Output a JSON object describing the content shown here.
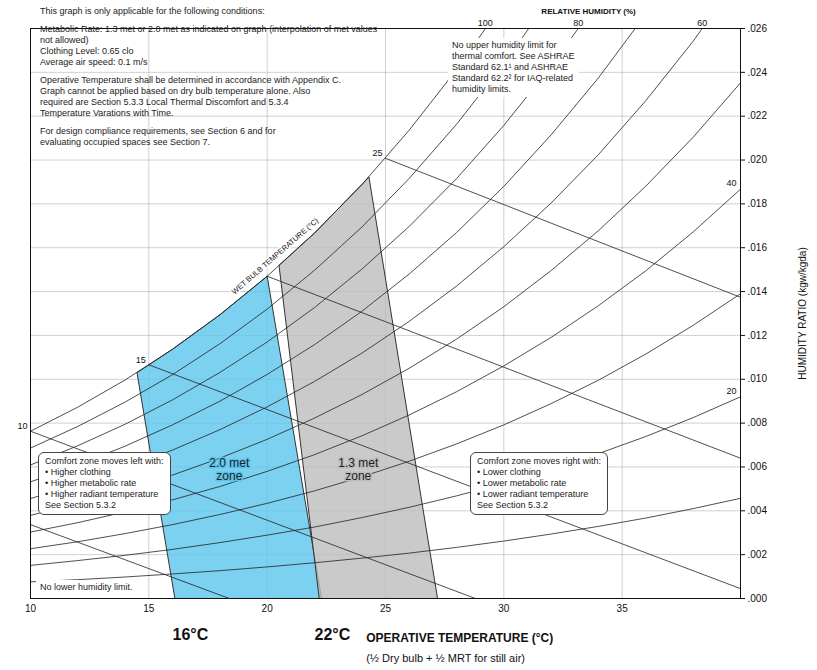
{
  "chart_data": {
    "type": "psychrometric",
    "xlabel": "OPERATIVE TEMPERATURE (°C)",
    "xlabel_note": "(½ Dry bulb + ½ MRT for still air)",
    "ylabel": "HUMIDITY RATIO (kgw/kgda)",
    "xlim": [
      10,
      40
    ],
    "xticks": [
      10,
      15,
      20,
      25,
      30,
      35
    ],
    "ylim": [
      0,
      0.026
    ],
    "yticks": [
      {
        "value": 0,
        "label": ".000"
      },
      {
        "value": 0.002,
        "label": ".002"
      },
      {
        "value": 0.004,
        "label": ".004"
      },
      {
        "value": 0.006,
        "label": ".006"
      },
      {
        "value": 0.008,
        "label": ".008"
      },
      {
        "value": 0.01,
        "label": ".010"
      },
      {
        "value": 0.012,
        "label": ".012"
      },
      {
        "value": 0.014,
        "label": ".014"
      },
      {
        "value": 0.016,
        "label": ".016"
      },
      {
        "value": 0.018,
        "label": ".018"
      },
      {
        "value": 0.02,
        "label": ".020"
      },
      {
        "value": 0.022,
        "label": ".022"
      },
      {
        "value": 0.024,
        "label": ".024"
      },
      {
        "value": 0.026,
        "label": ".026"
      }
    ],
    "grid": true,
    "relative_humidity": {
      "label": "RELATIVE HUMIDITY (%)",
      "curves": [
        {
          "label": 100,
          "x": [
            10,
            12,
            14,
            16,
            18,
            20,
            22,
            24,
            26,
            28,
            29.22
          ],
          "y": [
            0.00763,
            0.00873,
            0.00997,
            0.01137,
            0.01294,
            0.0147,
            0.01667,
            0.01888,
            0.02136,
            0.02412,
            0.026
          ]
        },
        {
          "x": [
            10,
            12,
            14,
            16,
            18,
            20,
            22,
            24,
            26,
            28,
            30,
            31.05
          ],
          "y": [
            0.00686,
            0.00785,
            0.00896,
            0.01021,
            0.01162,
            0.0132,
            0.01497,
            0.01694,
            0.01916,
            0.02163,
            0.02438,
            0.026
          ]
        },
        {
          "label": 80,
          "x": [
            10,
            12,
            14,
            16,
            18,
            20,
            22,
            24,
            26,
            28,
            30,
            32,
            33.14
          ],
          "y": [
            0.00609,
            0.00697,
            0.00795,
            0.00906,
            0.01031,
            0.0117,
            0.01327,
            0.01502,
            0.01697,
            0.01915,
            0.02158,
            0.02428,
            0.026
          ]
        },
        {
          "x": [
            10,
            12,
            14,
            16,
            18,
            20,
            22,
            24,
            26,
            28,
            30,
            32,
            34,
            35.55
          ],
          "y": [
            0.00532,
            0.00609,
            0.00695,
            0.00792,
            0.009,
            0.01022,
            0.01158,
            0.0131,
            0.0148,
            0.01669,
            0.0188,
            0.02115,
            0.02375,
            0.026
          ]
        },
        {
          "label": 60,
          "x": [
            10,
            12,
            14,
            16,
            18,
            20,
            22,
            24,
            26,
            28,
            30,
            32,
            34,
            36,
            38,
            38.38
          ],
          "y": [
            0.00456,
            0.00521,
            0.00595,
            0.00677,
            0.0077,
            0.00874,
            0.0099,
            0.01119,
            0.01264,
            0.01425,
            0.01605,
            0.01804,
            0.02025,
            0.02271,
            0.02542,
            0.026
          ]
        },
        {
          "x": [
            10,
            12,
            14,
            16,
            18,
            20,
            22,
            24,
            26,
            28,
            30,
            32,
            34,
            36,
            38,
            40
          ],
          "y": [
            0.00379,
            0.00434,
            0.00495,
            0.00563,
            0.0064,
            0.00726,
            0.00823,
            0.0093,
            0.0105,
            0.01183,
            0.01331,
            0.01496,
            0.01678,
            0.01881,
            0.02104,
            0.02352
          ]
        },
        {
          "label": 40,
          "x": [
            10,
            12,
            14,
            16,
            18,
            20,
            22,
            24,
            26,
            28,
            30,
            32,
            34,
            36,
            38,
            40
          ],
          "y": [
            0.00303,
            0.00346,
            0.00395,
            0.0045,
            0.00511,
            0.0058,
            0.00656,
            0.00742,
            0.00837,
            0.00943,
            0.01061,
            0.01191,
            0.01336,
            0.01495,
            0.01672,
            0.01867
          ]
        },
        {
          "x": [
            10,
            12,
            14,
            16,
            18,
            20,
            22,
            24,
            26,
            28,
            30,
            32,
            34,
            36,
            38,
            40
          ],
          "y": [
            0.00227,
            0.00259,
            0.00296,
            0.00337,
            0.00383,
            0.00434,
            0.00491,
            0.00555,
            0.00626,
            0.00705,
            0.00792,
            0.00889,
            0.00996,
            0.01115,
            0.01246,
            0.0139
          ]
        },
        {
          "label": 20,
          "x": [
            10,
            12,
            14,
            16,
            18,
            20,
            22,
            24,
            26,
            28,
            30,
            32,
            34,
            36,
            38,
            40
          ],
          "y": [
            0.00151,
            0.00173,
            0.00197,
            0.00224,
            0.00255,
            0.00289,
            0.00326,
            0.00369,
            0.00416,
            0.00468,
            0.00526,
            0.0059,
            0.00661,
            0.00739,
            0.00825,
            0.0092
          ]
        },
        {
          "x": [
            10,
            12,
            14,
            16,
            18,
            20,
            22,
            24,
            26,
            28,
            30,
            32,
            34,
            36,
            38,
            40
          ],
          "y": [
            0.00076,
            0.00086,
            0.00098,
            0.00112,
            0.00127,
            0.00144,
            0.00163,
            0.00184,
            0.00207,
            0.00233,
            0.00262,
            0.00294,
            0.00329,
            0.00367,
            0.0041,
            0.00457
          ]
        }
      ]
    },
    "wet_bulb": {
      "label": "WET BULB TEMPERATURE (°C)",
      "lines": [
        {
          "x": [
            10,
            18.4
          ],
          "y": [
            0.00337,
            0
          ]
        },
        {
          "label": 10,
          "x": [
            10,
            28.8
          ],
          "y": [
            0.00763,
            0
          ]
        },
        {
          "label": 15,
          "x": [
            15,
            40
          ],
          "y": [
            0.01066,
            0.00045
          ]
        },
        {
          "x": [
            20,
            40
          ],
          "y": [
            0.0147,
            0.0064
          ]
        },
        {
          "label": 25,
          "x": [
            25,
            40
          ],
          "y": [
            0.02008,
            0.01374
          ]
        }
      ]
    },
    "zones": [
      {
        "label": [
          "2.0 met",
          "zone"
        ],
        "color": "#5bc4ec",
        "x": [
          16.1,
          14.5,
          16,
          18,
          20,
          22.3
        ],
        "y": [
          0,
          0.0103,
          0.01137,
          0.01294,
          0.0147,
          0
        ]
      },
      {
        "label": [
          "1.3 met",
          "zone"
        ],
        "color": "#bdbdbd",
        "x": [
          22.2,
          20.5,
          22,
          24,
          24.3,
          27.2
        ],
        "y": [
          0,
          0.0152,
          0.01667,
          0.01888,
          0.01923,
          0
        ]
      }
    ],
    "annotations": [
      {
        "text": "16°C",
        "x": 16
      },
      {
        "text": "22°C",
        "x": 22
      }
    ],
    "notes": [
      [
        "This graph is only applicable for the following conditions:"
      ],
      [
        "Metabolic Rate: 1.3 met or 2.0 met as indicated on graph (interpolation of met values",
        "not allowed)",
        "Clothing Level: 0.65 clo",
        "Average air speed: 0.1 m/s"
      ],
      [
        "Operative Temperature shall be determined in accordance with Appendix C.",
        "Graph cannot be applied based on dry bulb temperature alone. Also",
        "required are Section 5.3.3 Local Thermal Discomfort and 5.3.4",
        "Temperature Varations with Time."
      ],
      [
        "For design compliance requirements, see Section 6 and for",
        "evaluating occupied spaces see Section 7."
      ]
    ],
    "humidity_note": [
      "No upper humidity limit for",
      "thermal comfort. See ASHRAE",
      "Standard 62.1¹ and ASHRAE",
      "Standard 62.2² for IAQ-related",
      "humidity limits."
    ],
    "left_box": [
      "Comfort zone moves left with:",
      "• Higher clothing",
      "• Higher metabolic rate",
      "• Higher radiant temperature",
      "See Section 5.3.2"
    ],
    "right_box": [
      "Comfort zone moves right with:",
      "• Lower clothing",
      "• Lower metabolic rate",
      "• Lower radiant temperature",
      "See Section 5.3.2"
    ],
    "bottom_note": "No lower humidity limit."
  }
}
